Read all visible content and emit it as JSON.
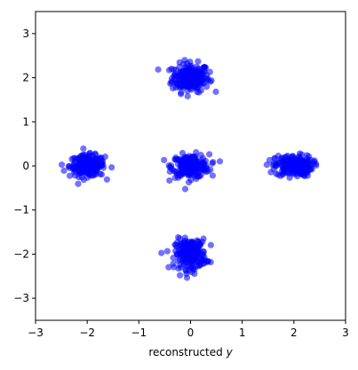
{
  "chart_data": {
    "type": "scatter",
    "title": "",
    "xlabel": "reconstructed",
    "xlabel_var": "y",
    "ylabel": "",
    "xlim": [
      -3,
      3
    ],
    "ylim": [
      -3.5,
      3.5
    ],
    "x_ticks": [
      -3,
      -2,
      -1,
      0,
      1,
      2,
      3
    ],
    "y_ticks": [
      -3,
      -2,
      -1,
      0,
      1,
      2,
      3
    ],
    "grid": false,
    "marker_color": "#0000ff",
    "marker_opacity": 0.55,
    "clusters": [
      {
        "center": [
          0,
          2
        ],
        "spread": [
          0.18,
          0.16
        ],
        "n": 220
      },
      {
        "center": [
          -2,
          0
        ],
        "spread": [
          0.17,
          0.12
        ],
        "n": 220
      },
      {
        "center": [
          0,
          0
        ],
        "spread": [
          0.18,
          0.13
        ],
        "n": 220
      },
      {
        "center": [
          2,
          0
        ],
        "spread": [
          0.18,
          0.12
        ],
        "n": 220
      },
      {
        "center": [
          0,
          -2
        ],
        "spread": [
          0.15,
          0.17
        ],
        "n": 220
      }
    ]
  }
}
